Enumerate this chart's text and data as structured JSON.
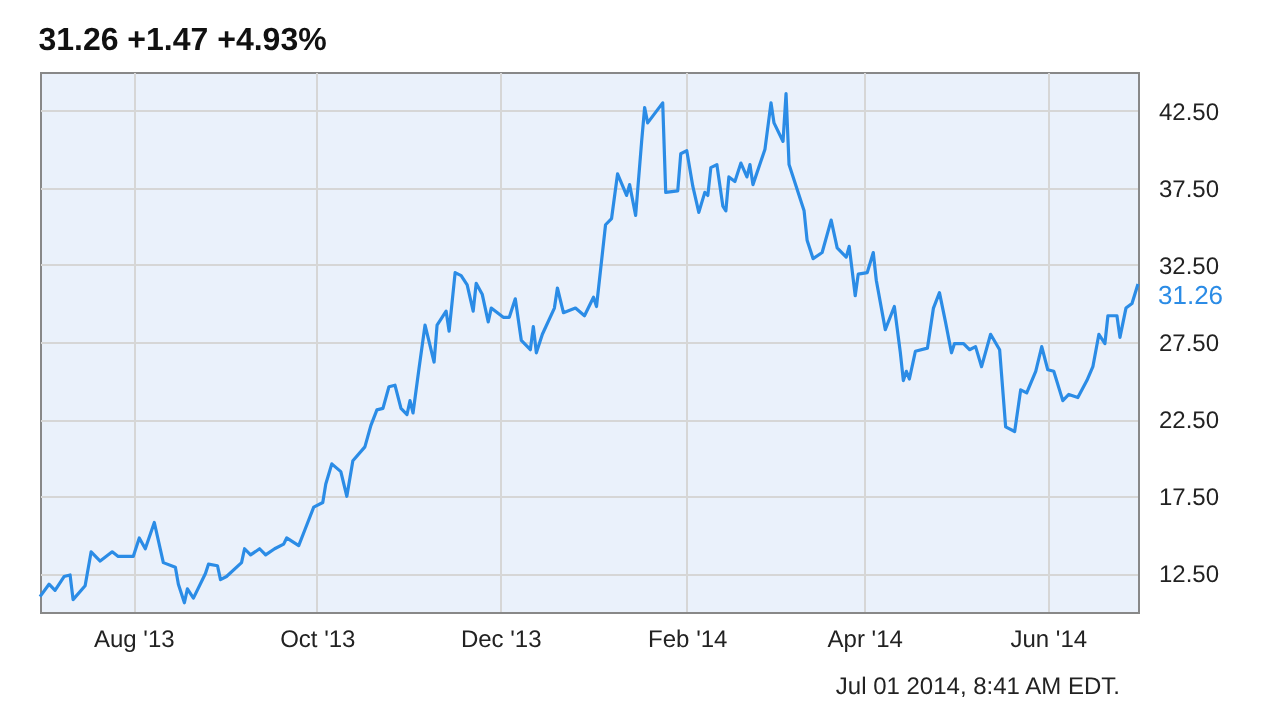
{
  "chart_data": {
    "type": "line",
    "title": "31.26 +1.47 +4.93%",
    "x": [
      "2013-07-01",
      "2013-07-04",
      "2013-07-06",
      "2013-07-09",
      "2013-07-11",
      "2013-07-12",
      "2013-07-16",
      "2013-07-18",
      "2013-07-21",
      "2013-07-25",
      "2013-07-27",
      "2013-08-01",
      "2013-08-03",
      "2013-08-05",
      "2013-08-08",
      "2013-08-11",
      "2013-08-15",
      "2013-08-16",
      "2013-08-18",
      "2013-08-19",
      "2013-08-21",
      "2013-08-25",
      "2013-08-26",
      "2013-08-29",
      "2013-08-30",
      "2013-09-01",
      "2013-09-06",
      "2013-09-07",
      "2013-09-09",
      "2013-09-12",
      "2013-09-14",
      "2013-09-17",
      "2013-09-20",
      "2013-09-21",
      "2013-09-25",
      "2013-09-27",
      "2013-09-30",
      "2013-10-03",
      "2013-10-04",
      "2013-10-06",
      "2013-10-09",
      "2013-10-11",
      "2013-10-13",
      "2013-10-17",
      "2013-10-19",
      "2013-10-21",
      "2013-10-23",
      "2013-10-25",
      "2013-10-27",
      "2013-10-29",
      "2013-10-31",
      "2013-11-01",
      "2013-11-02",
      "2013-11-04",
      "2013-11-06",
      "2013-11-09",
      "2013-11-10",
      "2013-11-13",
      "2013-11-14",
      "2013-11-16",
      "2013-11-18",
      "2013-11-20",
      "2013-11-22",
      "2013-11-23",
      "2013-11-25",
      "2013-11-27",
      "2013-11-28",
      "2013-12-02",
      "2013-12-04",
      "2013-12-06",
      "2013-12-08",
      "2013-12-11",
      "2013-12-12",
      "2013-12-13",
      "2013-12-15",
      "2013-12-19",
      "2013-12-20",
      "2013-12-22",
      "2013-12-26",
      "2013-12-29",
      "2014-01-01",
      "2014-01-02",
      "2014-01-05",
      "2014-01-07",
      "2014-01-09",
      "2014-01-12",
      "2014-01-13",
      "2014-01-15",
      "2014-01-17",
      "2014-01-18",
      "2014-01-19",
      "2014-01-24",
      "2014-01-25",
      "2014-01-29",
      "2014-01-30",
      "2014-02-01",
      "2014-02-03",
      "2014-02-05",
      "2014-02-07",
      "2014-02-08",
      "2014-02-09",
      "2014-02-11",
      "2014-02-13",
      "2014-02-14",
      "2014-02-15",
      "2014-02-17",
      "2014-02-19",
      "2014-02-21",
      "2014-02-22",
      "2014-02-23",
      "2014-02-27",
      "2014-03-01",
      "2014-03-02",
      "2014-03-05",
      "2014-03-06",
      "2014-03-07",
      "2014-03-09",
      "2014-03-12",
      "2014-03-13",
      "2014-03-15",
      "2014-03-18",
      "2014-03-21",
      "2014-03-23",
      "2014-03-26",
      "2014-03-27",
      "2014-03-29",
      "2014-03-30",
      "2014-04-02",
      "2014-04-04",
      "2014-04-05",
      "2014-04-08",
      "2014-04-11",
      "2014-04-13",
      "2014-04-14",
      "2014-04-15",
      "2014-04-16",
      "2014-04-18",
      "2014-04-22",
      "2014-04-24",
      "2014-04-26",
      "2014-04-28",
      "2014-04-30",
      "2014-05-01",
      "2014-05-04",
      "2014-05-06",
      "2014-05-08",
      "2014-05-10",
      "2014-05-13",
      "2014-05-16",
      "2014-05-18",
      "2014-05-21",
      "2014-05-23",
      "2014-05-25",
      "2014-05-28",
      "2014-05-30",
      "2014-06-01",
      "2014-06-03",
      "2014-06-06",
      "2014-06-08",
      "2014-06-11",
      "2014-06-14",
      "2014-06-16",
      "2014-06-18",
      "2014-06-20",
      "2014-06-21",
      "2014-06-24",
      "2014-06-25",
      "2014-06-27",
      "2014-06-29",
      "2014-07-01"
    ],
    "series": [
      {
        "color": "#2b8ce6",
        "values": [
          11.0,
          11.8,
          11.4,
          12.3,
          12.4,
          10.8,
          11.7,
          13.9,
          13.3,
          13.9,
          13.6,
          13.6,
          14.8,
          14.1,
          15.8,
          13.2,
          12.9,
          11.8,
          10.6,
          11.5,
          10.9,
          12.5,
          13.1,
          13.0,
          12.1,
          12.3,
          13.2,
          14.1,
          13.7,
          14.1,
          13.7,
          14.1,
          14.4,
          14.8,
          14.3,
          15.3,
          16.8,
          17.1,
          18.3,
          19.6,
          19.1,
          17.5,
          19.8,
          20.7,
          22.1,
          23.1,
          23.2,
          24.6,
          24.7,
          23.2,
          22.8,
          23.7,
          22.9,
          25.8,
          28.6,
          26.2,
          28.6,
          29.5,
          28.2,
          32.0,
          31.8,
          31.2,
          29.5,
          31.3,
          30.6,
          28.8,
          29.7,
          29.1,
          29.1,
          30.3,
          27.6,
          27.0,
          28.5,
          26.8,
          28.0,
          29.7,
          31.0,
          29.4,
          29.7,
          29.2,
          30.4,
          29.8,
          35.1,
          35.5,
          38.4,
          37.0,
          37.7,
          35.7,
          40.5,
          42.7,
          41.7,
          43.0,
          37.2,
          37.3,
          39.7,
          39.9,
          37.6,
          35.9,
          37.2,
          37.0,
          38.8,
          39.0,
          36.3,
          36.0,
          38.2,
          37.9,
          39.1,
          38.2,
          39.0,
          37.7,
          40.0,
          43.0,
          41.7,
          40.5,
          43.6,
          39.0,
          37.8,
          36.0,
          34.1,
          32.9,
          33.3,
          35.4,
          33.6,
          33.0,
          33.7,
          30.5,
          31.9,
          32.0,
          33.3,
          31.5,
          28.3,
          29.8,
          26.8,
          25.0,
          25.6,
          25.1,
          26.9,
          27.1,
          29.7,
          30.7,
          28.8,
          26.8,
          27.4,
          27.4,
          27.0,
          27.2,
          25.9,
          28.0,
          27.0,
          22.0,
          21.7,
          24.4,
          24.2,
          25.6,
          27.2,
          25.7,
          25.6,
          23.7,
          24.1,
          23.9,
          25.0,
          25.9,
          28.0,
          27.4,
          29.2,
          29.2,
          27.8,
          29.7,
          30.0,
          31.26
        ]
      }
    ],
    "xlim": [
      "2013-07-01",
      "2014-07-01"
    ],
    "xticks": [
      {
        "value": "2013-08-01",
        "label": "Aug '13"
      },
      {
        "value": "2013-10-01",
        "label": "Oct '13"
      },
      {
        "value": "2013-12-01",
        "label": "Dec '13"
      },
      {
        "value": "2014-02-01",
        "label": "Feb '14"
      },
      {
        "value": "2014-04-01",
        "label": "Apr '14"
      },
      {
        "value": "2014-06-01",
        "label": "Jun '14"
      }
    ],
    "ylim": [
      10,
      45
    ],
    "yticks": [
      {
        "value": 12.5,
        "label": "12.50"
      },
      {
        "value": 17.5,
        "label": "17.50"
      },
      {
        "value": 22.5,
        "label": "22.50"
      },
      {
        "value": 27.5,
        "label": "27.50"
      },
      {
        "value": 32.5,
        "label": "32.50"
      },
      {
        "value": 37.5,
        "label": "37.50"
      },
      {
        "value": 42.5,
        "label": "42.50"
      }
    ],
    "grid": true,
    "annotations": [
      {
        "text": "31.26",
        "x": "2014-07-01",
        "y": 31.26
      },
      "Jul 01 2014, 8:41 AM EDT."
    ]
  }
}
